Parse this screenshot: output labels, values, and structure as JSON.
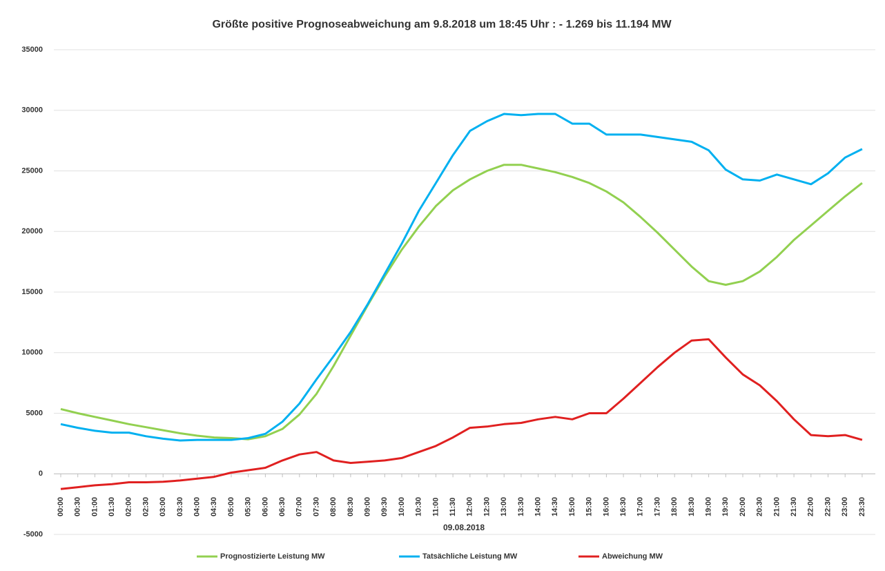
{
  "chart_data": {
    "type": "line",
    "title": "Größte positive Prognoseabweichung  am 9.8.2018 um 18:45 Uhr : - 1.269 bis 11.194 MW",
    "x_label": "09.08.2018",
    "categories": [
      "00:00",
      "00:30",
      "01:00",
      "01:30",
      "02:00",
      "02:30",
      "03:00",
      "03:30",
      "04:00",
      "04:30",
      "05:00",
      "05:30",
      "06:00",
      "06:30",
      "07:00",
      "07:30",
      "08:00",
      "08:30",
      "09:00",
      "09:30",
      "10:00",
      "10:30",
      "11:00",
      "11:30",
      "12:00",
      "12:30",
      "13:00",
      "13:30",
      "14:00",
      "14:30",
      "15:00",
      "15:30",
      "16:00",
      "16:30",
      "17:00",
      "17:30",
      "18:00",
      "18:30",
      "19:00",
      "19:30",
      "20:00",
      "20:30",
      "21:00",
      "21:30",
      "22:00",
      "22:30",
      "23:00",
      "23:30"
    ],
    "series": [
      {
        "name": "Prognostizierte Leistung MW",
        "color": "#92d050",
        "values": [
          5350,
          5000,
          4700,
          4400,
          4100,
          3850,
          3600,
          3350,
          3150,
          3000,
          2950,
          2850,
          3100,
          3700,
          4900,
          6600,
          8900,
          11400,
          13900,
          16300,
          18500,
          20400,
          22100,
          23400,
          24300,
          25000,
          25500,
          25500,
          25200,
          24900,
          24500,
          24000,
          23300,
          22400,
          21200,
          19900,
          18500,
          17100,
          15900,
          15600,
          15900,
          16700,
          17900,
          19300,
          20500,
          21700,
          22900,
          24000
        ]
      },
      {
        "name": "Tatsächliche Leistung MW",
        "color": "#00b0f0",
        "values": [
          4100,
          3800,
          3550,
          3400,
          3400,
          3100,
          2900,
          2750,
          2800,
          2800,
          2800,
          2950,
          3300,
          4300,
          5800,
          7800,
          9700,
          11700,
          14000,
          16500,
          19000,
          21700,
          24000,
          26300,
          28300,
          29100,
          29700,
          29600,
          29700,
          29700,
          28900,
          28900,
          28000,
          28000,
          28000,
          27800,
          27600,
          27400,
          26700,
          25100,
          24300,
          24200,
          24700,
          24300,
          23900,
          24800,
          26100,
          26800
        ]
      },
      {
        "name": "Abweichung MW",
        "color": "#e02020",
        "values": [
          -1250,
          -1100,
          -950,
          -850,
          -700,
          -700,
          -650,
          -550,
          -400,
          -250,
          100,
          300,
          500,
          1100,
          1600,
          1800,
          1100,
          900,
          1000,
          1100,
          1300,
          1800,
          2300,
          3000,
          3800,
          3900,
          4100,
          4200,
          4500,
          4700,
          4500,
          5000,
          5000,
          6200,
          7500,
          8800,
          10000,
          11000,
          11100,
          9600,
          8200,
          7300,
          6000,
          4500,
          3200,
          3100,
          3200,
          2800
        ]
      }
    ],
    "ylim": [
      -5000,
      35000
    ],
    "yticks": [
      -5000,
      0,
      5000,
      10000,
      15000,
      20000,
      25000,
      30000,
      35000
    ],
    "grid": true
  }
}
